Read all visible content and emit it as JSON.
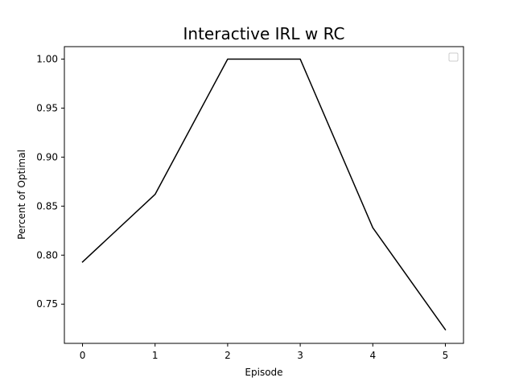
{
  "chart_data": {
    "type": "line",
    "title": "Interactive IRL w RC",
    "xlabel": "Episode",
    "ylabel": "Percent of Optimal",
    "x": [
      0,
      1,
      2,
      3,
      4,
      5
    ],
    "series": [
      {
        "values": [
          0.793,
          0.862,
          1.0,
          1.0,
          0.828,
          0.724
        ],
        "color": "#000000"
      }
    ],
    "xlim": [
      -0.25,
      5.25
    ],
    "ylim": [
      0.71,
      1.0127
    ],
    "xticks": [
      0,
      1,
      2,
      3,
      4,
      5
    ],
    "xtick_labels": [
      "0",
      "1",
      "2",
      "3",
      "4",
      "5"
    ],
    "yticks": [
      0.75,
      0.8,
      0.85,
      0.9,
      0.95,
      1.0
    ],
    "ytick_labels": [
      "0.75",
      "0.80",
      "0.85",
      "0.90",
      "0.95",
      "1.00"
    ],
    "grid": false,
    "legend": {
      "placement": "top-right",
      "entries": []
    }
  }
}
